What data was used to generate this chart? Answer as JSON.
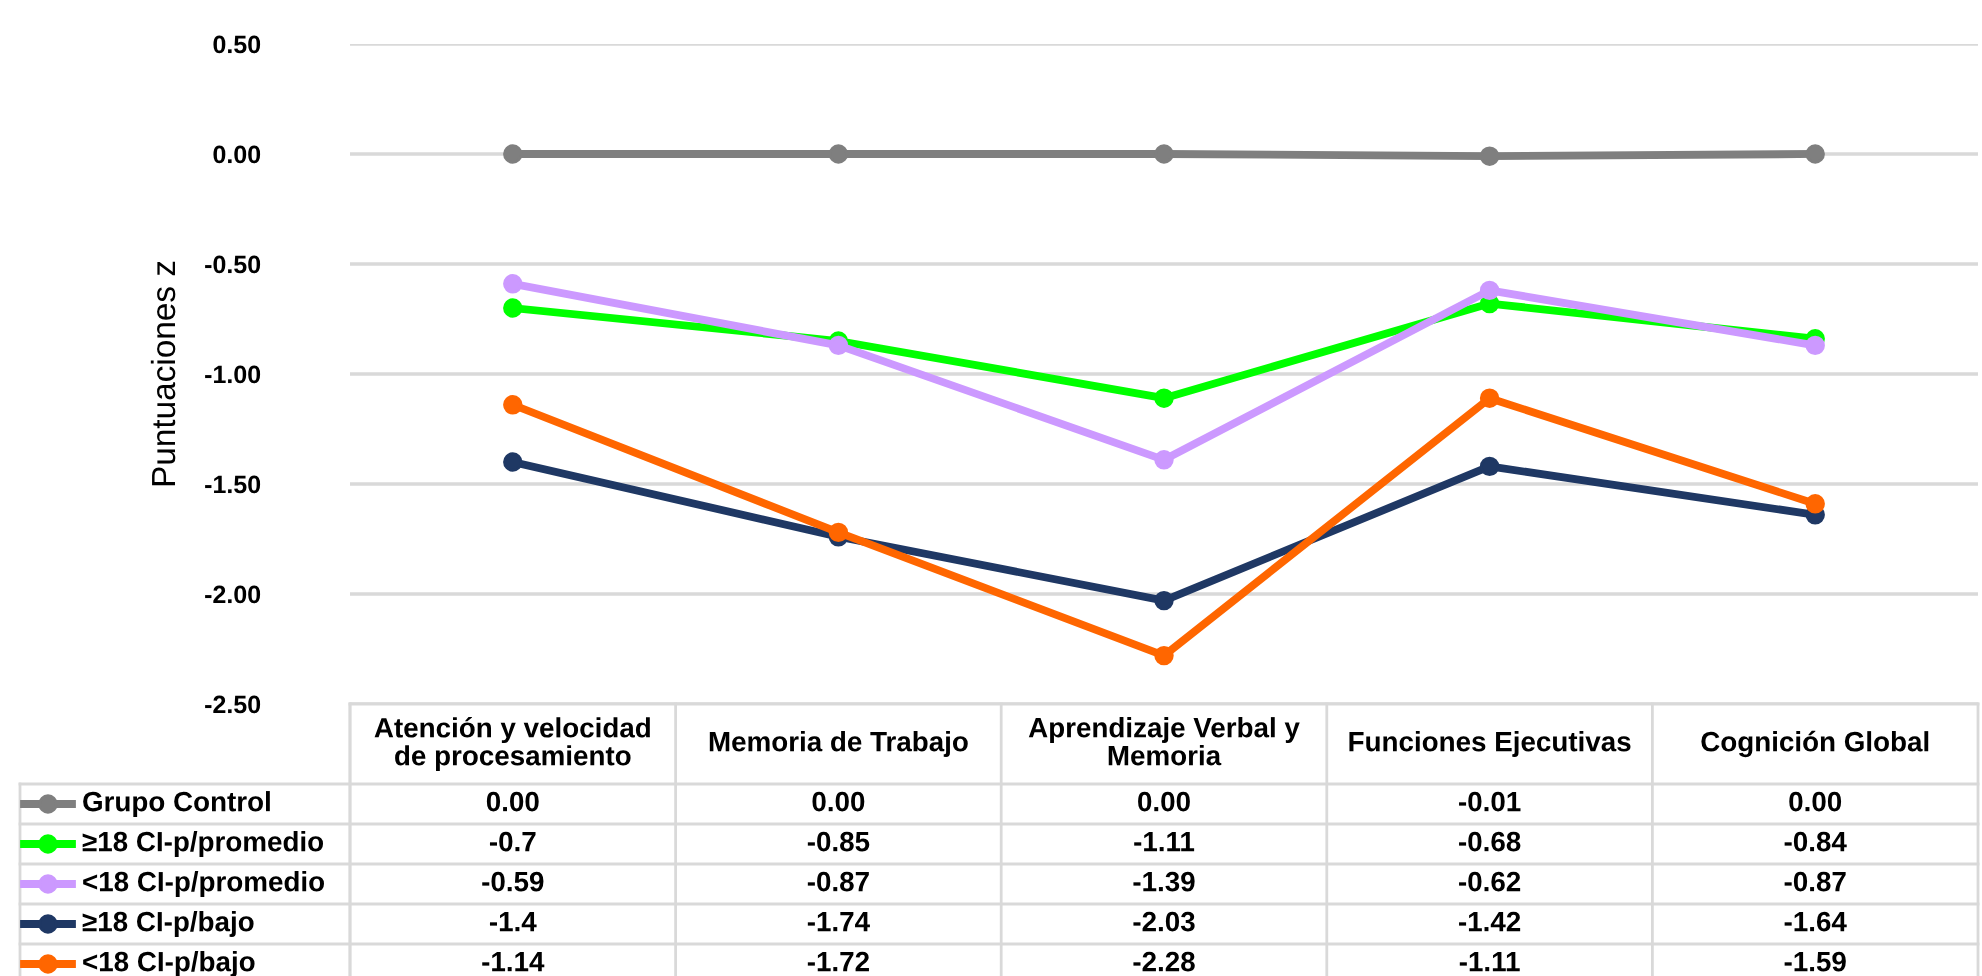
{
  "chart_data": {
    "type": "line",
    "ylabel": "Puntuaciones z",
    "categories": [
      "Atención y velocidad\nde procesamiento",
      "Memoria de Trabajo",
      "Aprendizaje Verbal y\nMemoria",
      "Funciones Ejecutivas",
      "Cognición Global"
    ],
    "series": [
      {
        "name": "Grupo Control",
        "color": "#7f7f7f",
        "values": [
          0.0,
          0.0,
          0.0,
          -0.01,
          0.0
        ],
        "value_labels": [
          "0.00",
          "0.00",
          "0.00",
          "-0.01",
          "0.00"
        ]
      },
      {
        "name": "≥18 CI-p/promedio",
        "color": "#00ff00",
        "values": [
          -0.7,
          -0.85,
          -1.11,
          -0.68,
          -0.84
        ],
        "value_labels": [
          "-0.7",
          "-0.85",
          "-1.11",
          "-0.68",
          "-0.84"
        ]
      },
      {
        "name": "<18 CI-p/promedio",
        "color": "#cc99ff",
        "values": [
          -0.59,
          -0.87,
          -1.39,
          -0.62,
          -0.87
        ],
        "value_labels": [
          "-0.59",
          "-0.87",
          "-1.39",
          "-0.62",
          "-0.87"
        ]
      },
      {
        "name": "≥18 CI-p/bajo",
        "color": "#1f3864",
        "values": [
          -1.4,
          -1.74,
          -2.03,
          -1.42,
          -1.64
        ],
        "value_labels": [
          "-1.4",
          "-1.74",
          "-2.03",
          "-1.42",
          "-1.64"
        ]
      },
      {
        "name": "<18 CI-p/bajo",
        "color": "#ff6600",
        "values": [
          -1.14,
          -1.72,
          -2.28,
          -1.11,
          -1.59
        ],
        "value_labels": [
          "-1.14",
          "-1.72",
          "-2.28",
          "-1.11",
          "-1.59"
        ]
      }
    ],
    "ylim": [
      -2.5,
      0.5
    ],
    "yticks": [
      {
        "value": 0.5,
        "label": "0.50"
      },
      {
        "value": 0.0,
        "label": "0.00"
      },
      {
        "value": -0.5,
        "label": "-0.50"
      },
      {
        "value": -1.0,
        "label": "-1.00"
      },
      {
        "value": -1.5,
        "label": "-1.50"
      },
      {
        "value": -2.0,
        "label": "-2.00"
      },
      {
        "value": -2.5,
        "label": "-2.50"
      }
    ],
    "grid": "y",
    "legend": "bottom",
    "marker": "circle",
    "line_style": "solid"
  }
}
